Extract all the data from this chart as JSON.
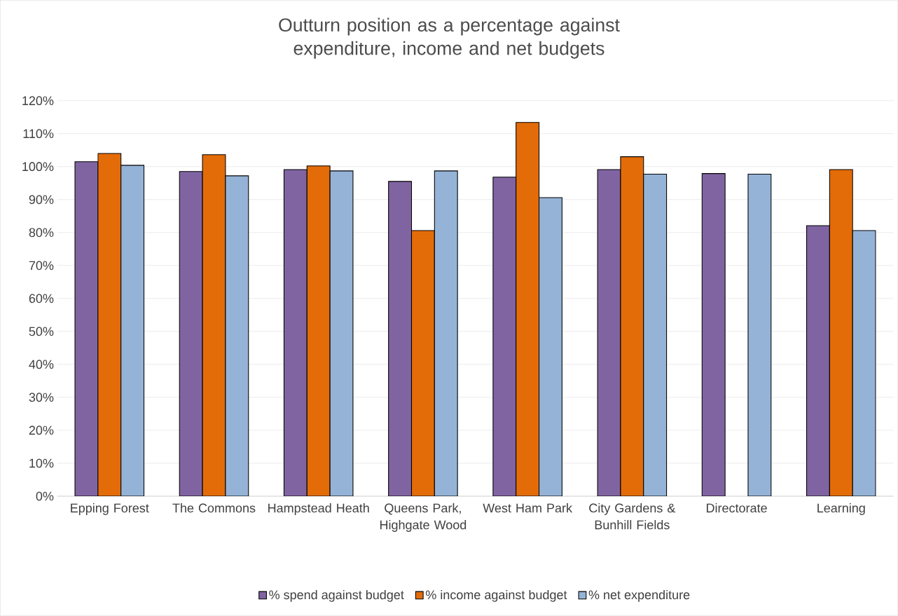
{
  "chart_data": {
    "type": "bar",
    "title": "Outturn position as a percentage against expenditure, income and net budgets",
    "categories": [
      "Epping Forest",
      "The Commons",
      "Hampstead Heath",
      "Queens Park, Highgate Wood",
      "West Ham Park",
      "City Gardens & Bunhill Fields",
      "Directorate",
      "Learning"
    ],
    "series": [
      {
        "name": "% spend against budget",
        "color": "#8064a2",
        "values": [
          101.5,
          98.5,
          99.1,
          95.5,
          96.8,
          99.1,
          97.9,
          82.1
        ]
      },
      {
        "name": "% income against budget",
        "color": "#e36c09",
        "values": [
          104.0,
          103.6,
          100.2,
          80.6,
          113.4,
          103.0,
          null,
          99.1
        ]
      },
      {
        "name": "% net expenditure",
        "color": "#95b3d7",
        "values": [
          100.4,
          97.2,
          98.7,
          98.7,
          90.6,
          97.7,
          97.7,
          80.6
        ]
      }
    ],
    "ylim": [
      0,
      120
    ],
    "yticks": [
      {
        "value": 0,
        "label": "0%"
      },
      {
        "value": 10,
        "label": "10%"
      },
      {
        "value": 20,
        "label": "20%"
      },
      {
        "value": 30,
        "label": "30%"
      },
      {
        "value": 40,
        "label": "40%"
      },
      {
        "value": 50,
        "label": "50%"
      },
      {
        "value": 60,
        "label": "60%"
      },
      {
        "value": 70,
        "label": "70%"
      },
      {
        "value": 80,
        "label": "80%"
      },
      {
        "value": 90,
        "label": "90%"
      },
      {
        "value": 100,
        "label": "100%"
      },
      {
        "value": 110,
        "label": "110%"
      },
      {
        "value": 120,
        "label": "120%"
      }
    ],
    "grid": "y",
    "legend": "bottom"
  }
}
